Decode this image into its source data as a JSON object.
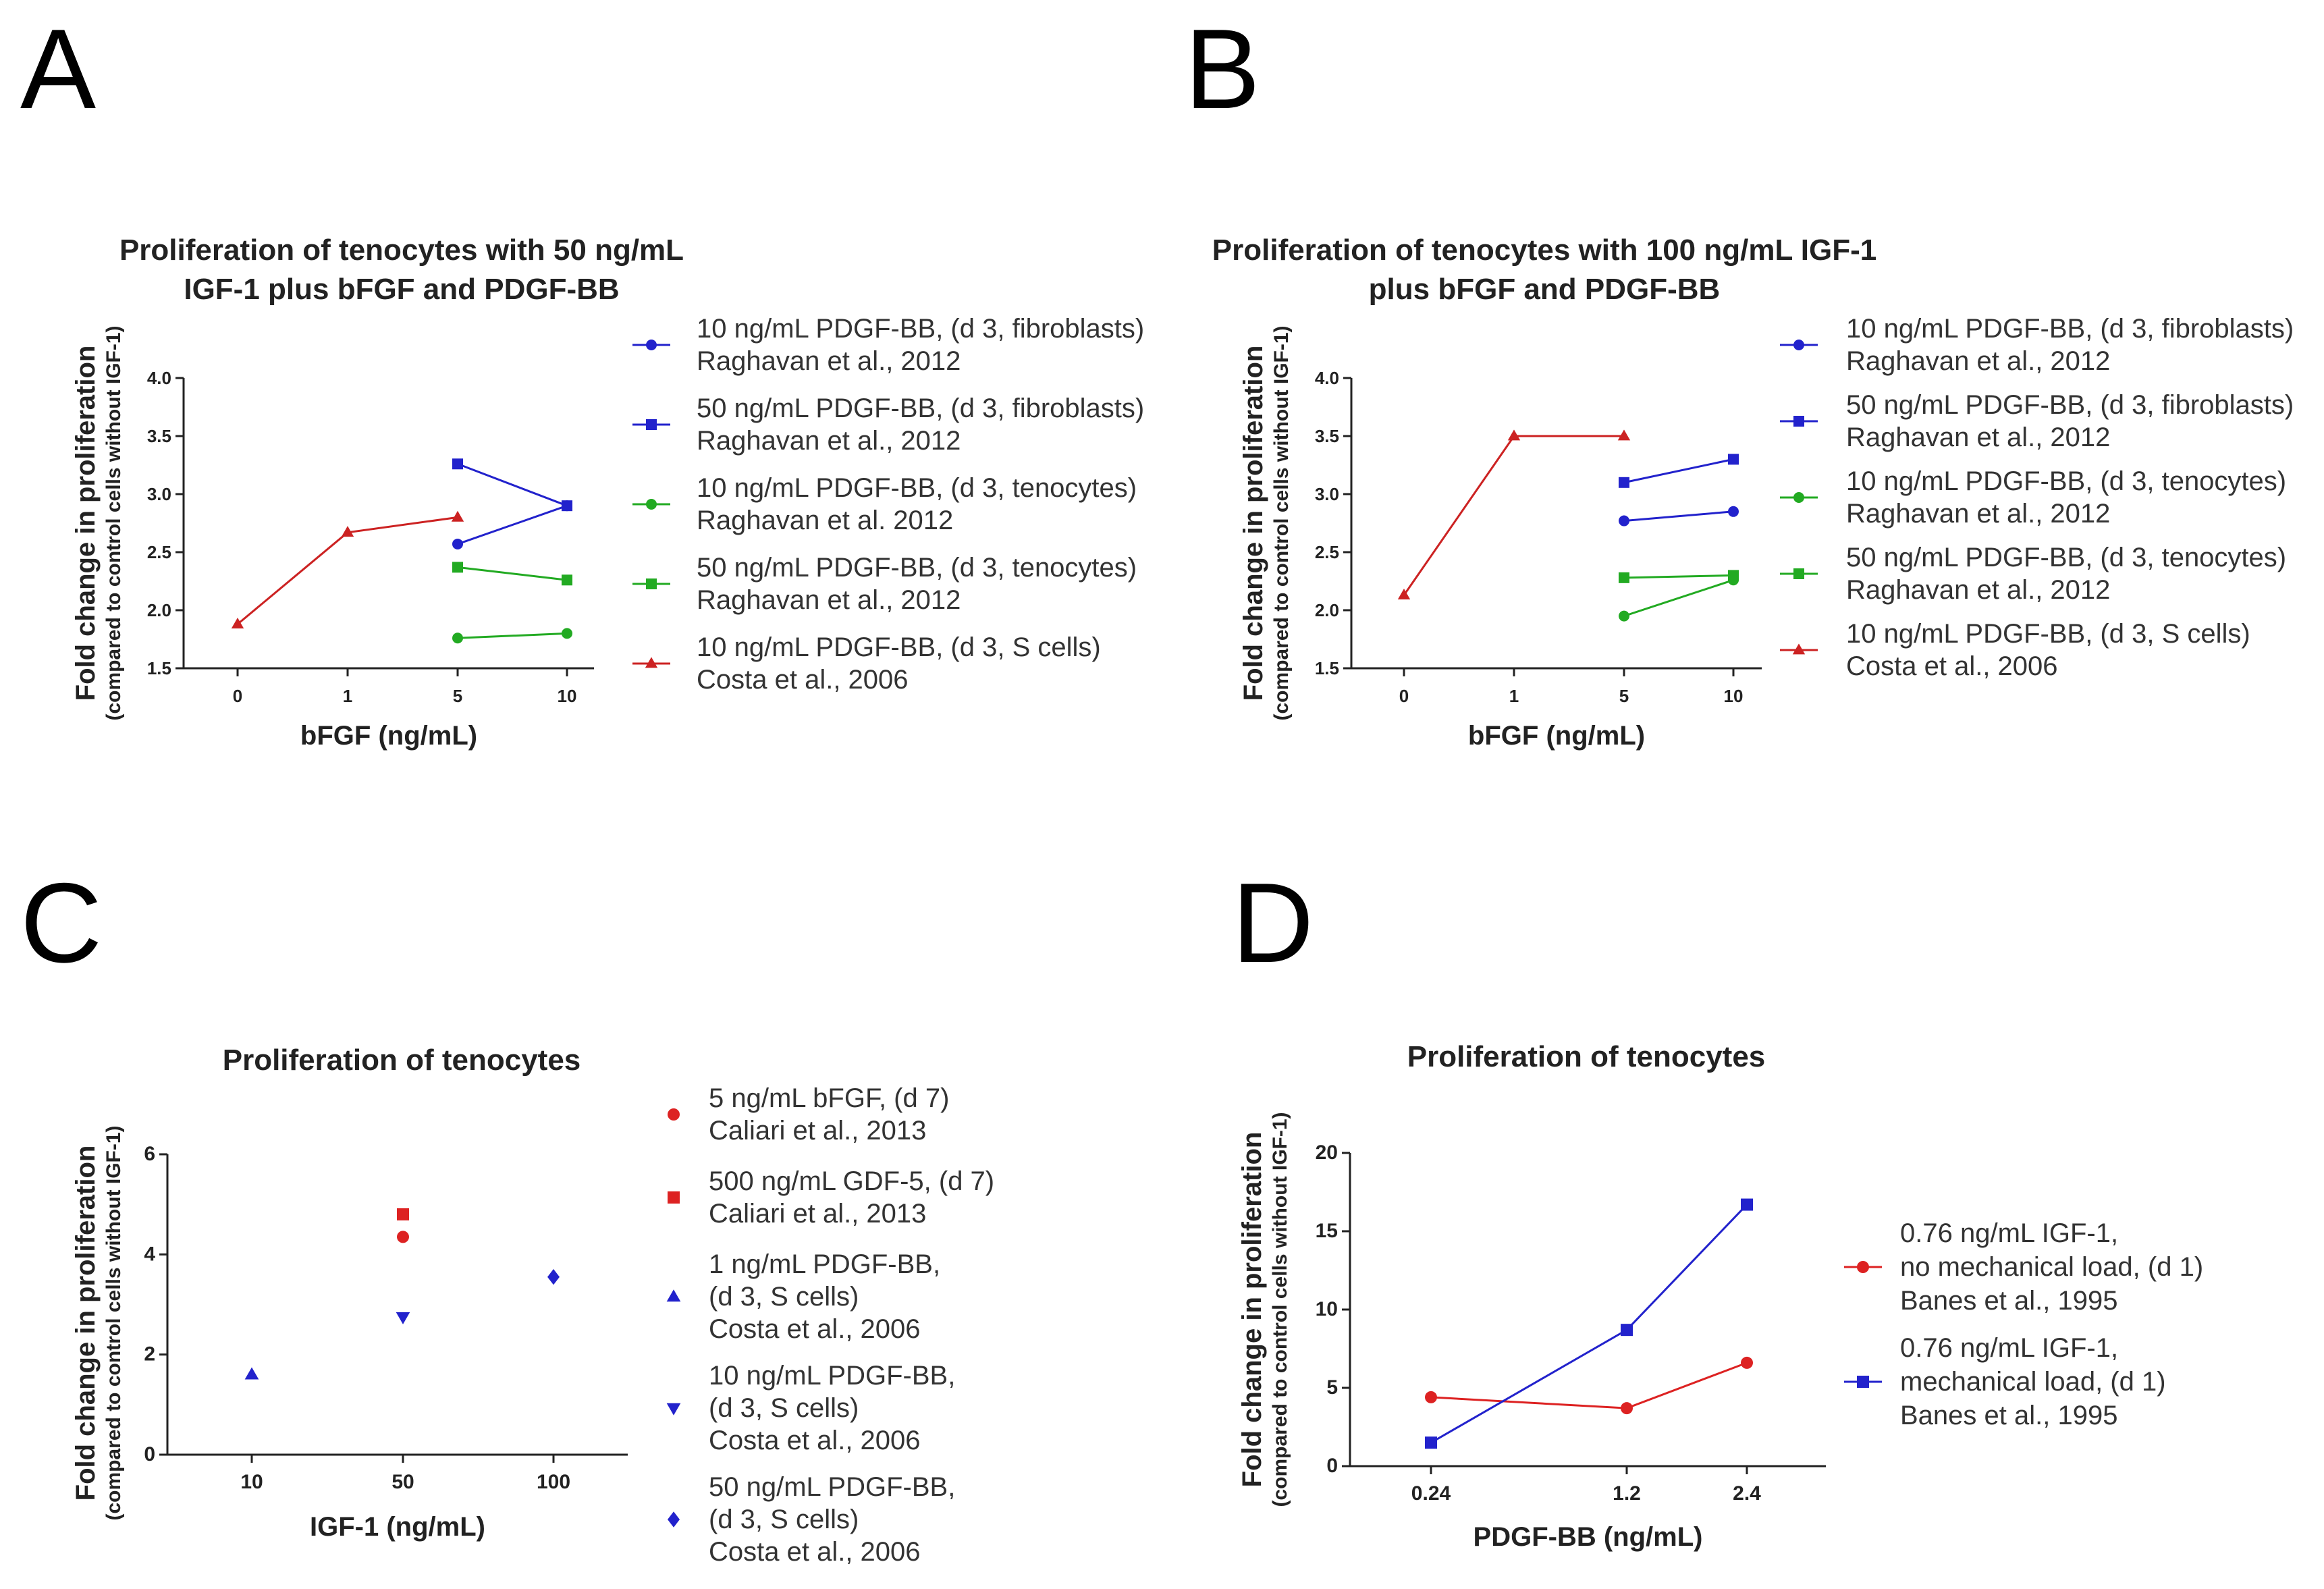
{
  "panels": [
    {
      "letter": "A",
      "chart_data": {
        "type": "line",
        "title": [
          "Proliferation of tenocytes with 50 ng/mL",
          "IGF-1 plus bFGF and PDGF-BB"
        ],
        "xlabel": "bFGF (ng/mL)",
        "ylabel": [
          "Fold change in proliferation",
          "(compared to control cells without IGF-1)"
        ],
        "x_ticks": [
          "0",
          "1",
          "5",
          "10"
        ],
        "y_ticks": [
          "1.5",
          "2.0",
          "2.5",
          "3.0",
          "3.5",
          "4.0"
        ],
        "ylim": [
          1.5,
          4.0
        ],
        "series": [
          {
            "legend": [
              "10 ng/mL PDGF-BB, (d 3, fibroblasts)",
              "Raghavan et al., 2012"
            ],
            "color": "#2222cc",
            "marker": "circle",
            "x": [
              "5",
              "10"
            ],
            "values": [
              2.57,
              2.9
            ]
          },
          {
            "legend": [
              "50 ng/mL PDGF-BB, (d 3, fibroblasts)",
              "Raghavan et al., 2012"
            ],
            "color": "#2222cc",
            "marker": "square",
            "x": [
              "5",
              "10"
            ],
            "values": [
              3.26,
              2.9
            ]
          },
          {
            "legend": [
              "10 ng/mL PDGF-BB, (d 3, tenocytes)",
              "Raghavan et al. 2012"
            ],
            "color": "#22aa22",
            "marker": "circle",
            "x": [
              "5",
              "10"
            ],
            "values": [
              1.76,
              1.8
            ]
          },
          {
            "legend": [
              "50 ng/mL PDGF-BB, (d 3, tenocytes)",
              "Raghavan et al., 2012"
            ],
            "color": "#22aa22",
            "marker": "square",
            "x": [
              "5",
              "10"
            ],
            "values": [
              2.37,
              2.26
            ]
          },
          {
            "legend": [
              "10 ng/mL PDGF-BB, (d 3, S cells)",
              "Costa et al., 2006"
            ],
            "color": "#cc2222",
            "marker": "triangle",
            "x": [
              "0",
              "1",
              "5"
            ],
            "values": [
              1.88,
              2.67,
              2.8
            ]
          }
        ]
      }
    },
    {
      "letter": "B",
      "chart_data": {
        "type": "line",
        "title": [
          "Proliferation of tenocytes with 100 ng/mL  IGF-1",
          "plus bFGF and PDGF-BB"
        ],
        "xlabel": "bFGF (ng/mL)",
        "ylabel": [
          "Fold change in proliferation",
          "(compared to control cells without IGF-1)"
        ],
        "x_ticks": [
          "0",
          "1",
          "5",
          "10"
        ],
        "y_ticks": [
          "1.5",
          "2.0",
          "2.5",
          "3.0",
          "3.5",
          "4.0"
        ],
        "ylim": [
          1.5,
          4.0
        ],
        "series": [
          {
            "legend": [
              "10 ng/mL PDGF-BB, (d 3, fibroblasts)",
              "Raghavan et al., 2012"
            ],
            "color": "#2222cc",
            "marker": "circle",
            "x": [
              "5",
              "10"
            ],
            "values": [
              2.77,
              2.85
            ]
          },
          {
            "legend": [
              "50 ng/mL PDGF-BB, (d 3, fibroblasts)",
              "Raghavan et al., 2012"
            ],
            "color": "#2222cc",
            "marker": "square",
            "x": [
              "5",
              "10"
            ],
            "values": [
              3.1,
              3.3
            ]
          },
          {
            "legend": [
              "10 ng/mL PDGF-BB, (d 3, tenocytes)",
              "Raghavan et al., 2012"
            ],
            "color": "#22aa22",
            "marker": "circle",
            "x": [
              "5",
              "10"
            ],
            "values": [
              1.95,
              2.26
            ]
          },
          {
            "legend": [
              "50 ng/mL PDGF-BB, (d 3, tenocytes)",
              "Raghavan et al., 2012"
            ],
            "color": "#22aa22",
            "marker": "square",
            "x": [
              "5",
              "10"
            ],
            "values": [
              2.28,
              2.3
            ]
          },
          {
            "legend": [
              "10 ng/mL PDGF-BB, (d 3, S cells)",
              "Costa et al., 2006"
            ],
            "color": "#cc2222",
            "marker": "triangle",
            "x": [
              "0",
              "1",
              "5"
            ],
            "values": [
              2.13,
              3.5,
              3.5
            ]
          }
        ]
      }
    },
    {
      "letter": "C",
      "chart_data": {
        "type": "scatter",
        "title": [
          "Proliferation of tenocytes"
        ],
        "xlabel": "IGF-1 (ng/mL)",
        "ylabel": [
          "Fold change in proliferation",
          "(compared to control cells without IGF-1)"
        ],
        "x_ticks": [
          "10",
          "50",
          "100"
        ],
        "y_ticks": [
          "0",
          "2",
          "4",
          "6"
        ],
        "ylim": [
          0,
          6
        ],
        "series": [
          {
            "legend": [
              "5 ng/mL bFGF, (d 7)",
              "Caliari et al., 2013"
            ],
            "color": "#dd2222",
            "marker": "circle",
            "x": [
              "50"
            ],
            "values": [
              4.35
            ]
          },
          {
            "legend": [
              "500 ng/mL GDF-5, (d 7)",
              "Caliari et al., 2013"
            ],
            "color": "#dd2222",
            "marker": "square",
            "x": [
              "50"
            ],
            "values": [
              4.8
            ]
          },
          {
            "legend": [
              "1 ng/mL PDGF-BB,",
              "(d 3, S cells)",
              "Costa et al., 2006"
            ],
            "color": "#2222cc",
            "marker": "triangle",
            "x": [
              "10"
            ],
            "values": [
              1.6
            ]
          },
          {
            "legend": [
              "10 ng/mL PDGF-BB,",
              "(d 3, S cells)",
              "Costa et al., 2006"
            ],
            "color": "#2222cc",
            "marker": "triangle-down",
            "x": [
              "50"
            ],
            "values": [
              2.75
            ]
          },
          {
            "legend": [
              "50 ng/mL PDGF-BB,",
              "(d 3, S cells)",
              "Costa et al., 2006"
            ],
            "color": "#2222cc",
            "marker": "diamond",
            "x": [
              "100"
            ],
            "values": [
              3.55
            ]
          }
        ]
      }
    },
    {
      "letter": "D",
      "chart_data": {
        "type": "line",
        "title": [
          "Proliferation of tenocytes"
        ],
        "xlabel": "PDGF-BB (ng/mL)",
        "ylabel": [
          "Fold change in proliferation",
          "(compared to control cells without IGF-1)"
        ],
        "x_ticks": [
          "0.24",
          "1.2",
          "2.4"
        ],
        "y_ticks": [
          "0",
          "5",
          "10",
          "15",
          "20"
        ],
        "ylim": [
          0,
          20
        ],
        "series": [
          {
            "legend": [
              "0.76 ng/mL IGF-1,",
              "no mechanical load, (d 1)",
              "Banes et al., 1995"
            ],
            "color": "#dd2222",
            "marker": "circle",
            "x": [
              "0.24",
              "1.2",
              "2.4"
            ],
            "values": [
              4.4,
              3.7,
              6.6
            ]
          },
          {
            "legend": [
              "0.76 ng/mL IGF-1,",
              "mechanical load, (d 1)",
              "Banes et al., 1995"
            ],
            "color": "#2222cc",
            "marker": "square",
            "x": [
              "0.24",
              "1.2",
              "2.4"
            ],
            "values": [
              1.5,
              8.7,
              16.7
            ]
          }
        ]
      }
    }
  ]
}
